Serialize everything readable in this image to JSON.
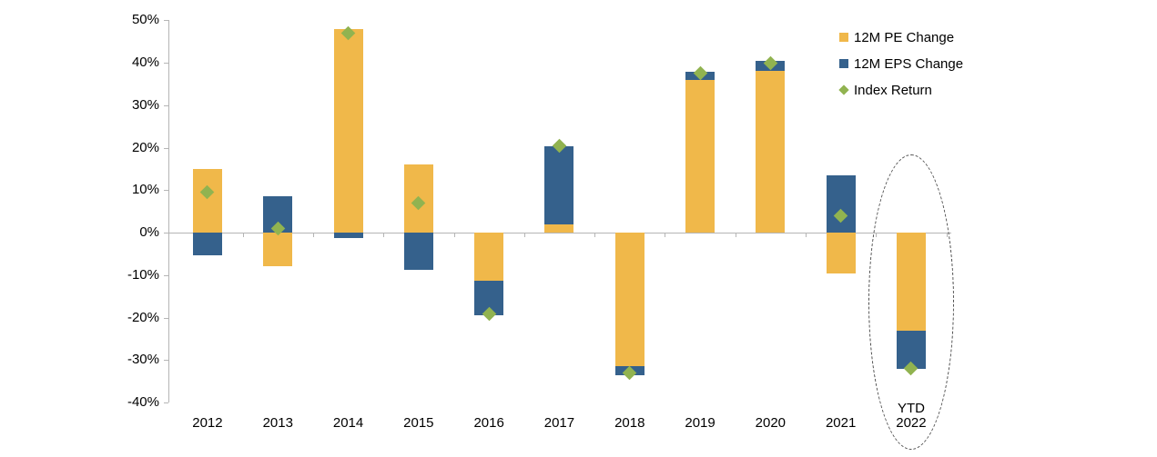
{
  "chart_data": {
    "type": "bar",
    "stacked": true,
    "title": "",
    "xlabel": "",
    "ylabel": "",
    "categories": [
      "2012",
      "2013",
      "2014",
      "2015",
      "2016",
      "2017",
      "2018",
      "2019",
      "2020",
      "2021",
      "YTD\n2022"
    ],
    "series": [
      {
        "name": "12M PE Change",
        "color": "#F0B84A",
        "values": [
          15,
          -8,
          48,
          16,
          -11.3,
          2,
          -31.5,
          36,
          38,
          -9.7,
          -23
        ]
      },
      {
        "name": "12M EPS Change",
        "color": "#35618C",
        "values": [
          -5.3,
          8.5,
          -1.3,
          -8.7,
          -8.1,
          18.3,
          -2.1,
          1.8,
          2.5,
          13.5,
          -9
        ]
      }
    ],
    "marker_series": {
      "name": "Index Return",
      "color": "#91B350",
      "marker": "diamond",
      "values": [
        9.5,
        1,
        47,
        7,
        -19.2,
        20.5,
        -33,
        37.5,
        40,
        4,
        -32
      ]
    },
    "ylim": [
      -40,
      50
    ],
    "ytick_labels": [
      "50%",
      "40%",
      "30%",
      "20%",
      "10%",
      "0%",
      "-10%",
      "-20%",
      "-30%",
      "-40%"
    ],
    "grid": false,
    "legend_position": "top-right",
    "axis_color": "#b5b5b5",
    "annotation": {
      "circled_category": "YTD 2022",
      "style": "dashed-ellipse"
    }
  }
}
